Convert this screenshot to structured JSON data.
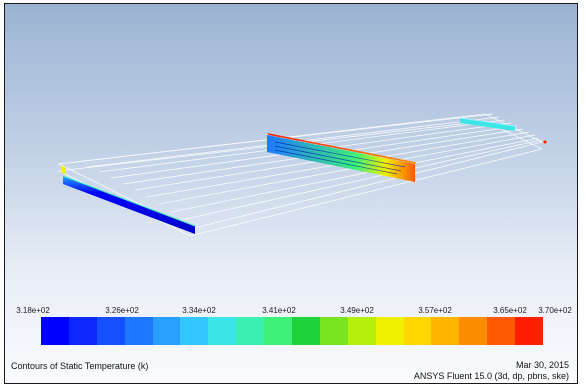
{
  "caption": {
    "title": "Contours of Static Temperature (k)",
    "date": "Mar 30, 2015",
    "solver": "ANSYS Fluent 15.0 (3d, dp, pbns, ske)"
  },
  "colorbar": {
    "tick_labels": [
      "3.18e+02",
      "3.26e+02",
      "3.34e+02",
      "3.41e+02",
      "3.49e+02",
      "3.57e+02",
      "3.65e+02",
      "3.70e+02"
    ],
    "colors": [
      "#0000ff",
      "#0a28ff",
      "#1450ff",
      "#1e78ff",
      "#28a0ff",
      "#32c8ff",
      "#3ce6e6",
      "#3cf0b4",
      "#3cf078",
      "#1ed23c",
      "#78e61e",
      "#b4f00a",
      "#f0f000",
      "#ffd700",
      "#ffb400",
      "#ff8c00",
      "#ff5a00",
      "#ff1e00"
    ]
  }
}
